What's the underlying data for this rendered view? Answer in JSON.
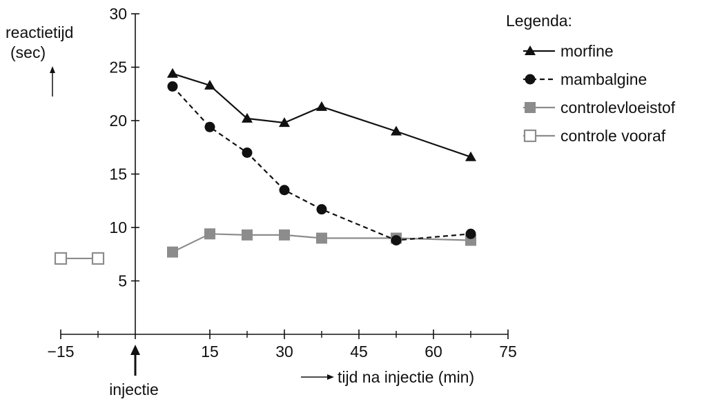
{
  "chart_data": {
    "type": "line",
    "xlabel": "tijd na injectie (min)",
    "ylabel_line1": "reactietijd",
    "ylabel_line2": "(sec)",
    "injection_label": "injectie",
    "legend_title": "Legenda:",
    "xlim": [
      -15,
      75
    ],
    "ylim": [
      0,
      30
    ],
    "x_ticks": [
      -15,
      15,
      30,
      45,
      60,
      75
    ],
    "x_tick_labels": [
      "−15",
      "15",
      "30",
      "45",
      "60",
      "75"
    ],
    "x_minor_ticks": [
      -7.5,
      22.5,
      37.5,
      52.5,
      67.5
    ],
    "y_ticks": [
      5,
      10,
      15,
      20,
      25,
      30
    ],
    "y_tick_labels": [
      "5",
      "10",
      "15",
      "20",
      "25",
      "30"
    ],
    "series": [
      {
        "name": "morfine",
        "marker": "triangle",
        "dash": "solid",
        "color": "#111111",
        "x": [
          7.5,
          15,
          22.5,
          30,
          37.5,
          52.5,
          67.5
        ],
        "y": [
          24.4,
          23.3,
          20.2,
          19.8,
          21.3,
          19.0,
          16.6
        ]
      },
      {
        "name": "mambalgine",
        "marker": "circle",
        "dash": "dashed",
        "color": "#111111",
        "x": [
          7.5,
          15,
          22.5,
          30,
          37.5,
          52.5,
          67.5
        ],
        "y": [
          23.2,
          19.4,
          17.0,
          13.5,
          11.7,
          8.8,
          9.4
        ]
      },
      {
        "name": "controlevloeistof",
        "marker": "square-filled",
        "dash": "solid",
        "color": "#8c8c8c",
        "x": [
          7.5,
          15,
          22.5,
          30,
          37.5,
          52.5,
          67.5
        ],
        "y": [
          7.7,
          9.4,
          9.3,
          9.3,
          9.0,
          9.0,
          8.8
        ]
      },
      {
        "name": "controle vooraf",
        "marker": "square-open",
        "dash": "solid",
        "color": "#8c8c8c",
        "x": [
          -15,
          -7.5
        ],
        "y": [
          7.1,
          7.1
        ]
      }
    ]
  }
}
